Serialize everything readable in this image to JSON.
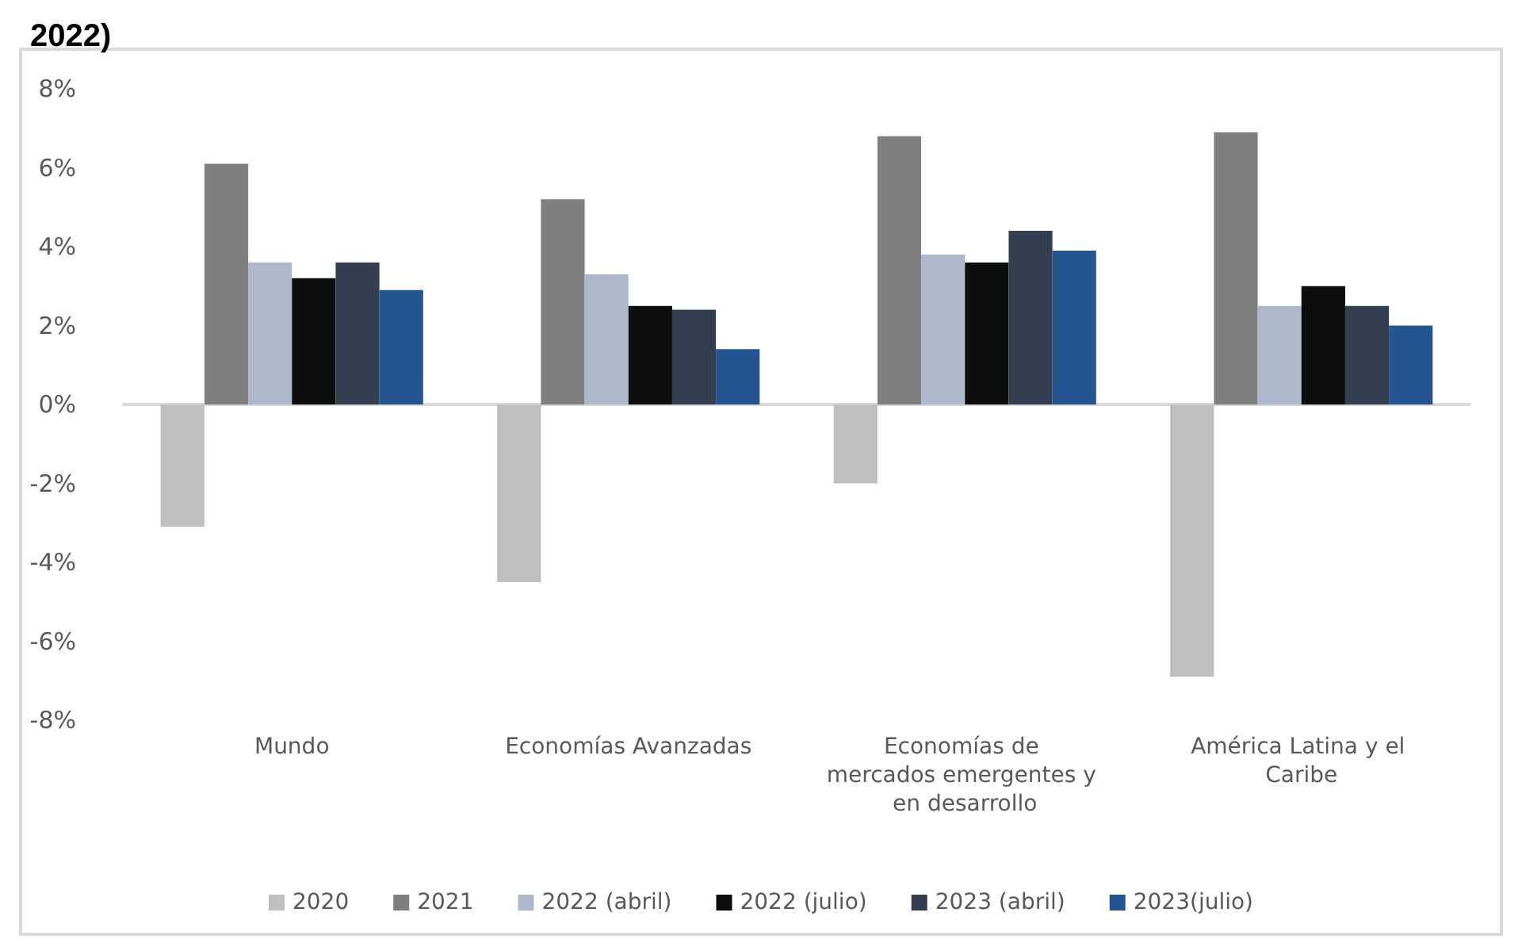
{
  "chart_data": {
    "type": "bar",
    "title": "2022)",
    "categories": [
      "Mundo",
      "Economías Avanzadas",
      "Economías de mercados emergentes y en desarrollo",
      "América Latina y el Caribe"
    ],
    "series": [
      {
        "name": "2020",
        "color": "#bfbfbf",
        "values": [
          -3.1,
          -4.5,
          -2.0,
          -6.9
        ]
      },
      {
        "name": "2021",
        "color": "#7f7f7f",
        "values": [
          6.1,
          5.2,
          6.8,
          6.9
        ]
      },
      {
        "name": "2022 (abril)",
        "color": "#adb9ca",
        "values": [
          3.6,
          3.3,
          3.8,
          2.5
        ]
      },
      {
        "name": "2022 (julio)",
        "color": "#0d0d0d",
        "values": [
          3.2,
          2.5,
          3.6,
          3.0
        ]
      },
      {
        "name": "2023 (abril)",
        "color": "#333f50",
        "values": [
          3.6,
          2.4,
          4.4,
          2.5
        ]
      },
      {
        "name": "2023(julio)",
        "color": "#255591",
        "values": [
          2.9,
          1.4,
          3.9,
          2.0
        ]
      }
    ],
    "ylim": [
      -8,
      8
    ],
    "yticks": [
      {
        "value": -8,
        "label": "-8%"
      },
      {
        "value": -6,
        "label": "-6%"
      },
      {
        "value": -4,
        "label": "-4%"
      },
      {
        "value": -2,
        "label": "-2%"
      },
      {
        "value": 0,
        "label": "0%"
      },
      {
        "value": 2,
        "label": "2%"
      },
      {
        "value": 4,
        "label": "4%"
      },
      {
        "value": 6,
        "label": "6%"
      },
      {
        "value": 8,
        "label": "8%"
      }
    ],
    "legend": "bottom"
  }
}
